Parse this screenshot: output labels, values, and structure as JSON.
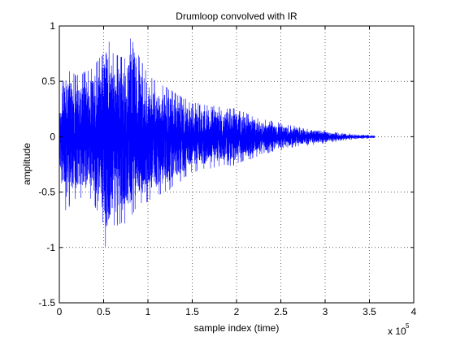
{
  "chart_data": {
    "type": "line",
    "title": "Drumloop convolved with IR",
    "xlabel": "sample index (time)",
    "ylabel": "amplitude",
    "x_exponent_base": "x 10",
    "x_exponent_power": "5",
    "xlim": [
      0,
      4
    ],
    "ylim": [
      -1.5,
      1
    ],
    "x_ticks": [
      0,
      0.5,
      1,
      1.5,
      2,
      2.5,
      3,
      3.5,
      4
    ],
    "x_tick_labels": [
      "0",
      "0.5",
      "1",
      "1.5",
      "2",
      "2.5",
      "3",
      "3.5",
      "4"
    ],
    "y_ticks": [
      -1.5,
      -1,
      -0.5,
      0,
      0.5,
      1
    ],
    "y_tick_labels": [
      "-1.5",
      "-1",
      "-0.5",
      "0",
      "0.5",
      "1"
    ],
    "grid": true,
    "series": [
      {
        "color": "#0000ff",
        "envelope": {
          "x": [
            0,
            0.05,
            0.2,
            0.35,
            0.5,
            0.52,
            0.6,
            0.75,
            0.83,
            0.9,
            1.0,
            1.2,
            1.5,
            1.8,
            2.0,
            2.3,
            2.6,
            2.9,
            3.1,
            3.3,
            3.5,
            3.56
          ],
          "upper": [
            0.25,
            0.62,
            0.55,
            0.6,
            0.75,
            0.97,
            0.75,
            0.7,
            1.0,
            0.72,
            0.55,
            0.45,
            0.3,
            0.27,
            0.25,
            0.15,
            0.1,
            0.06,
            0.04,
            0.02,
            0.01,
            0.005
          ],
          "lower": [
            -0.3,
            -0.68,
            -0.55,
            -0.55,
            -0.78,
            -1.0,
            -0.8,
            -0.78,
            -0.7,
            -0.6,
            -0.58,
            -0.5,
            -0.32,
            -0.27,
            -0.25,
            -0.15,
            -0.1,
            -0.06,
            -0.04,
            -0.02,
            -0.01,
            -0.005
          ]
        }
      }
    ]
  }
}
